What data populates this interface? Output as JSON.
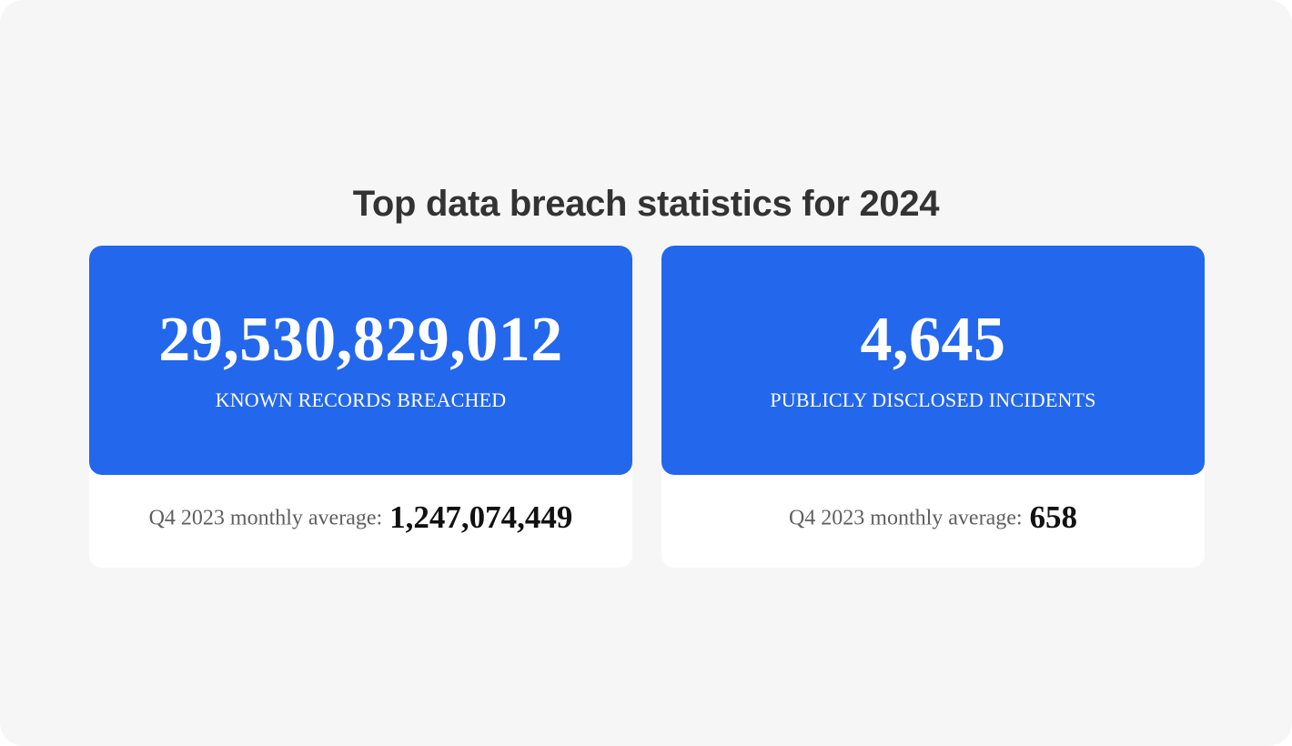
{
  "title": "Top data breach statistics for 2024",
  "cards": [
    {
      "value": "29,530,829,012",
      "label": "KNOWN RECORDS BREACHED",
      "footer_label": "Q4 2023 monthly average:",
      "footer_value": "1,247,074,449"
    },
    {
      "value": "4,645",
      "label": "PUBLICLY DISCLOSED INCIDENTS",
      "footer_label": "Q4 2023 monthly average:",
      "footer_value": "658"
    }
  ],
  "colors": {
    "background": "#f6f6f6",
    "card_background": "#ffffff",
    "accent": "#2367ed",
    "title_text": "#333333",
    "footer_label_text": "#5f5f5f",
    "footer_value_text": "#111111"
  }
}
